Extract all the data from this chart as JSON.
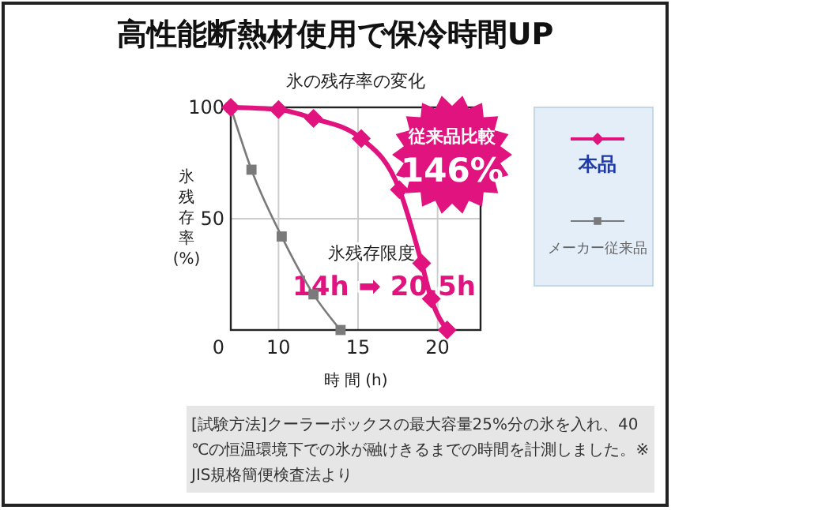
{
  "chart_data": {
    "type": "line",
    "title": "高性能断熱材使用で保冷時間UP",
    "subtitle": "氷の残存率の変化",
    "xlabel": "時 間 (h)",
    "ylabel": "氷残存率(%)",
    "xlim": [
      7,
      22.7
    ],
    "xticks": [
      10,
      15,
      20
    ],
    "ylim": [
      0,
      100
    ],
    "yticks": [
      0,
      50,
      100
    ],
    "grid": true,
    "legend": "right",
    "series": [
      {
        "name": "本品",
        "color": "#e0137f",
        "marker": "diamond",
        "x": [
          7,
          10,
          12.2,
          15.2,
          17.6,
          19,
          19.6,
          20.6
        ],
        "values": [
          100,
          99,
          95,
          86,
          63,
          30,
          14,
          0
        ]
      },
      {
        "name": "メーカー従来品",
        "color": "#7a7a7a",
        "marker": "square",
        "x": [
          7,
          8.3,
          10.2,
          12.2,
          13.9
        ],
        "values": [
          100,
          72,
          42,
          16,
          0
        ]
      }
    ],
    "annotations": [
      "従来品比較\n146%",
      "氷残存限度\n14h ➡ 20.5h",
      "[試験方法]クーラーボックスの最大容量25%分の氷を入れ、40℃の恒温環境下での氷が融けきるまでの時間を計測しました。※JIS規格簡便検査法より"
    ]
  }
}
